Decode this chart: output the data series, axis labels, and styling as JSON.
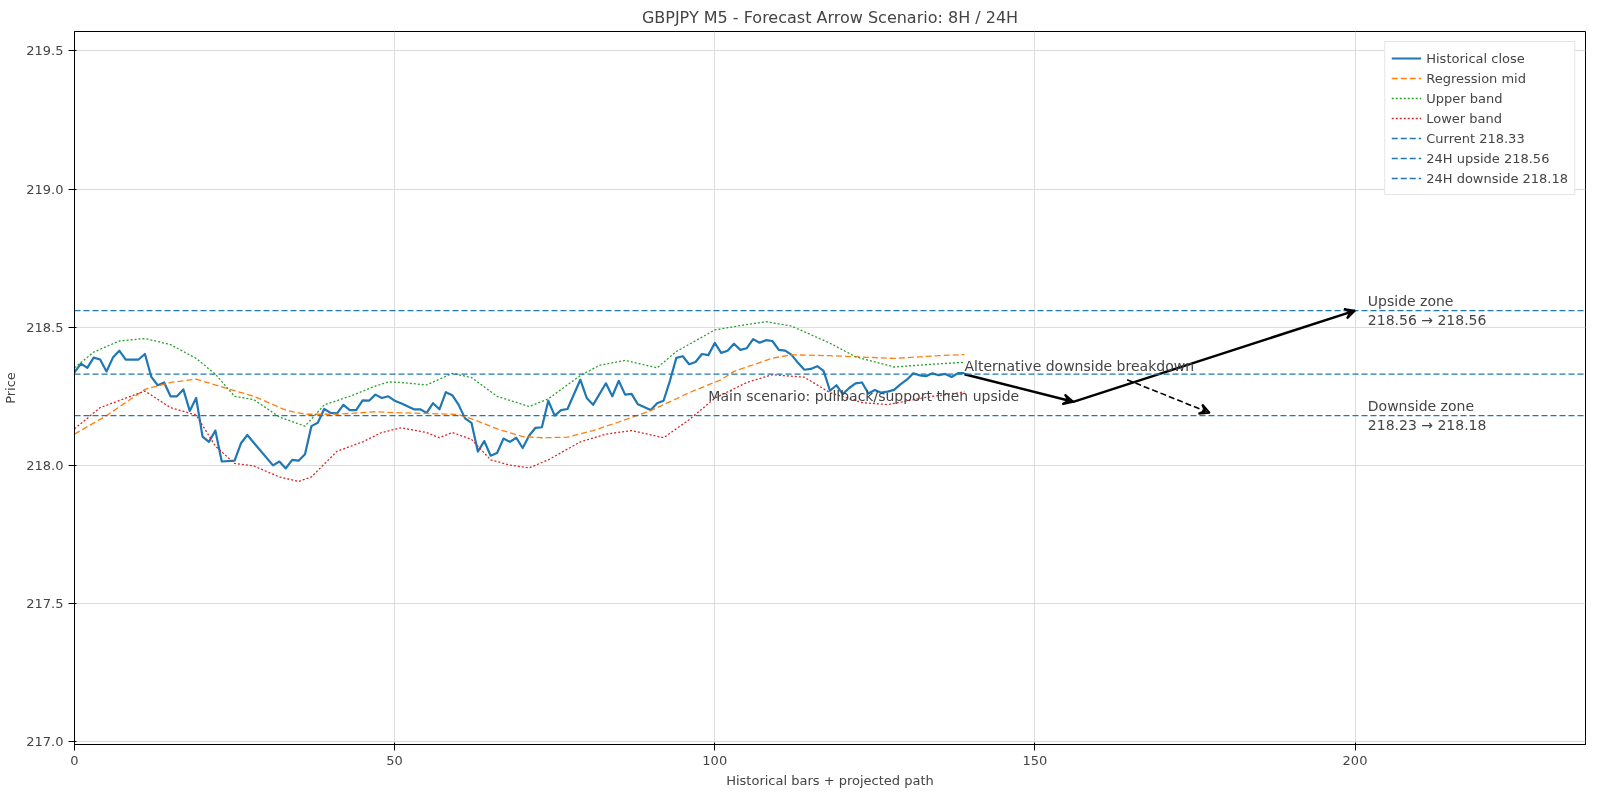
{
  "chart_data": {
    "type": "line",
    "title": "GBPJPY M5 - Forecast Arrow Scenario: 8H / 24H",
    "xlabel": "Historical bars + projected path",
    "ylabel": "Price",
    "xlim": [
      0,
      236
    ],
    "ylim": [
      216.99,
      219.57
    ],
    "xticks": [
      0,
      50,
      100,
      150,
      200
    ],
    "yticks": [
      {
        "value": 217.0,
        "label": "217.0"
      },
      {
        "value": 217.5,
        "label": "217.5"
      },
      {
        "value": 218.0,
        "label": "218.0"
      },
      {
        "value": 218.5,
        "label": "218.5"
      },
      {
        "value": 219.0,
        "label": "219.0"
      },
      {
        "value": 219.5,
        "label": "219.5"
      }
    ],
    "grid": true,
    "legend": "top right",
    "series": [
      {
        "name": "Historical close",
        "color": "#1f77b4",
        "line_style": "solid",
        "x": [
          0,
          1,
          2,
          3,
          4,
          5,
          6,
          7,
          8,
          10,
          11,
          12,
          13,
          14,
          15,
          16,
          17,
          18,
          19,
          20,
          21,
          22,
          23,
          25,
          26,
          27,
          28,
          31,
          32,
          33,
          34,
          35,
          36,
          37,
          38,
          39,
          40,
          41,
          42,
          43,
          44,
          45,
          46,
          47,
          48,
          49,
          50,
          51,
          53,
          54,
          55,
          56,
          57,
          58,
          59,
          60,
          61,
          62,
          63,
          64,
          65,
          66,
          67,
          68,
          69,
          70,
          71,
          72,
          73,
          74,
          75,
          76,
          77,
          79,
          80,
          81,
          83,
          84,
          85,
          86,
          87,
          88,
          90,
          91,
          92,
          93,
          94,
          95,
          96,
          97,
          98,
          99,
          100,
          101,
          102,
          103,
          104,
          105,
          106,
          107,
          108,
          109,
          110,
          111,
          112,
          113,
          114,
          115,
          116,
          117,
          118,
          119,
          120,
          121,
          122,
          123,
          124,
          125,
          126,
          127,
          128,
          129,
          130,
          131,
          132,
          133,
          134,
          135,
          136,
          137,
          138,
          139
        ],
        "values": [
          218.337,
          218.368,
          218.353,
          218.39,
          218.383,
          218.34,
          218.39,
          218.415,
          218.383,
          218.383,
          218.403,
          218.32,
          218.29,
          218.3,
          218.25,
          218.25,
          218.275,
          218.197,
          218.244,
          218.104,
          218.085,
          218.126,
          218.014,
          218.017,
          218.08,
          218.11,
          218.082,
          218.0,
          218.014,
          217.989,
          218.02,
          218.017,
          218.04,
          218.142,
          218.154,
          218.204,
          218.19,
          218.188,
          218.219,
          218.2,
          218.2,
          218.235,
          218.234,
          218.256,
          218.244,
          218.25,
          218.234,
          218.225,
          218.203,
          218.203,
          218.19,
          218.225,
          218.203,
          218.265,
          218.254,
          218.219,
          218.17,
          218.154,
          218.05,
          218.088,
          218.035,
          218.045,
          218.097,
          218.085,
          218.1,
          218.063,
          218.107,
          218.136,
          218.138,
          218.234,
          218.18,
          218.2,
          218.204,
          218.31,
          218.244,
          218.219,
          218.297,
          218.25,
          218.306,
          218.256,
          218.259,
          218.221,
          218.2,
          218.225,
          218.234,
          218.306,
          218.389,
          218.395,
          218.366,
          218.374,
          218.403,
          218.399,
          218.443,
          218.407,
          218.415,
          218.44,
          218.418,
          218.424,
          218.457,
          218.444,
          218.453,
          218.45,
          218.418,
          218.415,
          218.4,
          218.371,
          218.346,
          218.349,
          218.359,
          218.342,
          218.27,
          218.29,
          218.258,
          218.28,
          218.297,
          218.3,
          218.26,
          218.273,
          218.263,
          218.267,
          218.273,
          218.293,
          218.31,
          218.333,
          218.326,
          218.323,
          218.333,
          218.326,
          218.331,
          218.32,
          218.334,
          218.334
        ]
      },
      {
        "name": "Regression mid",
        "color": "#ff7f0e",
        "line_style": "dashed",
        "x": [
          0,
          5,
          11,
          15,
          19,
          23,
          28,
          33,
          36,
          41,
          47,
          51,
          55,
          60,
          63,
          66,
          70,
          73,
          77,
          81,
          85,
          90,
          94,
          96,
          101,
          103,
          109,
          112,
          118,
          128,
          135,
          139
        ],
        "values": [
          218.113,
          218.18,
          218.275,
          218.3,
          218.312,
          218.284,
          218.25,
          218.2,
          218.185,
          218.185,
          218.194,
          218.19,
          218.188,
          218.184,
          218.16,
          218.132,
          218.104,
          218.1,
          218.102,
          218.126,
          218.157,
          218.198,
          218.241,
          218.263,
          218.31,
          218.34,
          218.388,
          218.4,
          218.397,
          218.387,
          218.397,
          218.401
        ]
      },
      {
        "name": "Upper band",
        "color": "#2ca02c",
        "line_style": "dotted",
        "x": [
          0,
          3,
          7,
          11,
          15,
          19,
          22,
          25,
          28,
          32,
          36,
          39,
          43,
          47,
          49,
          51,
          55,
          59,
          62,
          66,
          71,
          74,
          79,
          82,
          86,
          91,
          94,
          100,
          104,
          108,
          112,
          118,
          122,
          128,
          134,
          139
        ],
        "values": [
          218.353,
          218.41,
          218.45,
          218.459,
          218.437,
          218.387,
          218.33,
          218.25,
          218.238,
          218.175,
          218.142,
          218.219,
          218.25,
          218.287,
          218.302,
          218.3,
          218.291,
          218.333,
          218.318,
          218.25,
          218.213,
          218.241,
          218.325,
          218.362,
          218.38,
          218.353,
          218.412,
          218.49,
          218.506,
          218.52,
          218.504,
          218.442,
          218.393,
          218.356,
          218.366,
          218.373
        ]
      },
      {
        "name": "Lower band",
        "color": "#d62728",
        "line_style": "dotted",
        "x": [
          0,
          4,
          11,
          15,
          19,
          22,
          25,
          28,
          32,
          35,
          37,
          41,
          45,
          48,
          51,
          55,
          57,
          59,
          62,
          65,
          68,
          71,
          74,
          79,
          83,
          87,
          92,
          96,
          100,
          105,
          109,
          114,
          118,
          123,
          127,
          133,
          139
        ],
        "values": [
          218.132,
          218.209,
          218.269,
          218.209,
          218.182,
          218.07,
          218.007,
          217.998,
          217.958,
          217.942,
          217.958,
          218.051,
          218.085,
          218.119,
          218.136,
          218.119,
          218.1,
          218.119,
          218.094,
          218.02,
          218.001,
          217.991,
          218.02,
          218.085,
          218.113,
          218.126,
          218.1,
          218.165,
          218.243,
          218.3,
          218.328,
          218.319,
          218.263,
          218.227,
          218.22,
          218.246,
          218.266
        ]
      },
      {
        "type": "line",
        "color": "#000000",
        "line_style": "solid",
        "x": [
          139,
          156,
          200
        ],
        "values": [
          218.33,
          218.23,
          218.56
        ]
      },
      {
        "type": "line",
        "color": "#000000",
        "line_style": "dashed",
        "x": [
          164.4,
          177.3
        ],
        "values": [
          218.31,
          218.19
        ]
      }
    ],
    "ref_lines": [
      {
        "axis": "y",
        "value": 218.33,
        "label": "Current 218.33",
        "color": "#1f77b4",
        "line_style": "dashed"
      },
      {
        "axis": "y",
        "value": 218.56,
        "label": "24H upside 218.56",
        "color": "#1f77b4",
        "line_style": "dashed"
      },
      {
        "axis": "y",
        "value": 218.18,
        "label": "24H downside 218.18",
        "color": "#1f77b4",
        "line_style": "dashed"
      }
    ],
    "annotations": [
      {
        "text": "Main scenario: pullback/support then upside",
        "x": 99,
        "y": 218.25
      },
      {
        "text": "Alternative downside breakdown",
        "x": 139,
        "y": 218.36
      },
      {
        "text": "Upside zone\n218.56 → 218.56",
        "x": 202,
        "y": 218.56
      },
      {
        "text": "Downside zone\n218.23 → 218.18",
        "x": 202,
        "y": 218.18
      }
    ]
  }
}
